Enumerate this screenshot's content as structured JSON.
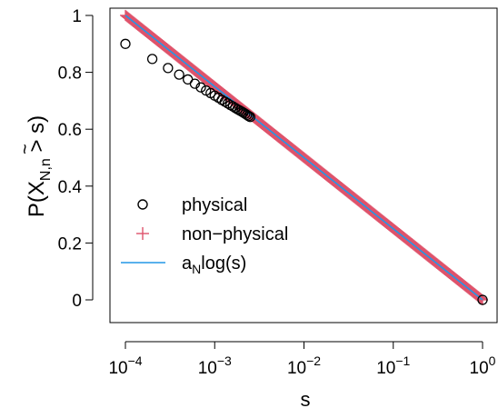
{
  "chart_data": {
    "type": "scatter",
    "title": "",
    "xlabel": "s",
    "ylabel": {
      "prefix": "P(",
      "main": "X",
      "accent": "~",
      "subscript": "N,n",
      "suffix": " > s)"
    },
    "x_scale": "log10",
    "xlim": [
      0.0001,
      1
    ],
    "ylim": [
      0,
      1
    ],
    "x_ticks": [
      {
        "value": 0.0001,
        "base": "10",
        "exp": "−4"
      },
      {
        "value": 0.001,
        "base": "10",
        "exp": "−3"
      },
      {
        "value": 0.01,
        "base": "10",
        "exp": "−2"
      },
      {
        "value": 0.1,
        "base": "10",
        "exp": "−1"
      },
      {
        "value": 1,
        "base": "10",
        "exp": "0"
      }
    ],
    "y_ticks": [
      {
        "value": 0,
        "label": "0"
      },
      {
        "value": 0.2,
        "label": "0.2"
      },
      {
        "value": 0.4,
        "label": "0.4"
      },
      {
        "value": 0.6,
        "label": "0.6"
      },
      {
        "value": 0.8,
        "label": "0.8"
      },
      {
        "value": 1,
        "label": "1"
      }
    ],
    "grid": false,
    "legend_position": "left",
    "series": [
      {
        "name": "physical",
        "marker": "open-circle",
        "color": "#000000",
        "x": [
          0.0001,
          0.0002,
          0.0003,
          0.0004,
          0.0005,
          0.0006,
          0.0007,
          0.0008,
          0.0009,
          0.001,
          0.0011,
          0.0012,
          0.0013,
          0.0014,
          0.0015,
          0.0016,
          0.0017,
          0.0018,
          0.0019,
          0.002,
          0.0021,
          0.0022,
          0.0023,
          0.0024,
          0.0025,
          1.0
        ],
        "y": [
          0.9,
          0.847,
          0.815,
          0.792,
          0.775,
          0.76,
          0.747,
          0.736,
          0.727,
          0.718,
          0.711,
          0.703,
          0.697,
          0.691,
          0.685,
          0.68,
          0.675,
          0.67,
          0.666,
          0.662,
          0.658,
          0.654,
          0.65,
          0.646,
          0.643,
          0.0
        ]
      },
      {
        "name": "non−physical",
        "marker": "plus",
        "color": "#DF536B",
        "x_range": [
          0.0001,
          1
        ],
        "points": 400,
        "a": -0.1086
      },
      {
        "name": "a",
        "name_sub": "N",
        "name_suffix": "log(s)",
        "marker": "line",
        "color": "#2297E6",
        "x_range": [
          0.0001,
          1
        ],
        "a": -0.1086
      }
    ]
  }
}
